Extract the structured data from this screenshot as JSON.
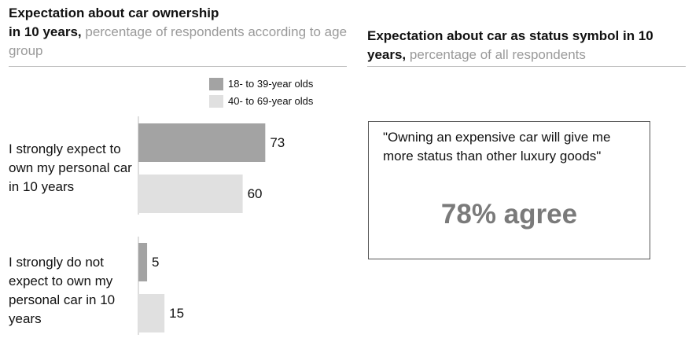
{
  "left_title": {
    "bold_line1": "Expectation about car ownership",
    "bold_line2": "in 10 years,",
    "rest": "percentage of respondents according to age group"
  },
  "right_title": {
    "bold": "Expectation about car as status symbol in 10 years,",
    "rest": "percentage of all respondents"
  },
  "chart_data": {
    "type": "bar",
    "orientation": "horizontal",
    "title": "Expectation about car ownership in 10 years, percentage of respondents according to age group",
    "categories": [
      "I strongly expect to own my personal car in 10 years",
      "I strongly do not expect to own my personal car in 10 years"
    ],
    "series": [
      {
        "name": "18- to 39-year olds",
        "values": [
          73,
          5
        ],
        "color": "#a3a3a3"
      },
      {
        "name": "40- to 69-year olds",
        "values": [
          60,
          15
        ],
        "color": "#e0e0e0"
      }
    ],
    "xlim": [
      0,
      100
    ],
    "grid": false,
    "legend": "top-right"
  },
  "status_box": {
    "quote": "\"Owning an expensive car will give me more status than other luxury goods\"",
    "stat": "78% agree"
  },
  "colors": {
    "title_gray": "#9a9a9a",
    "stat_gray": "#7a7a7a"
  }
}
